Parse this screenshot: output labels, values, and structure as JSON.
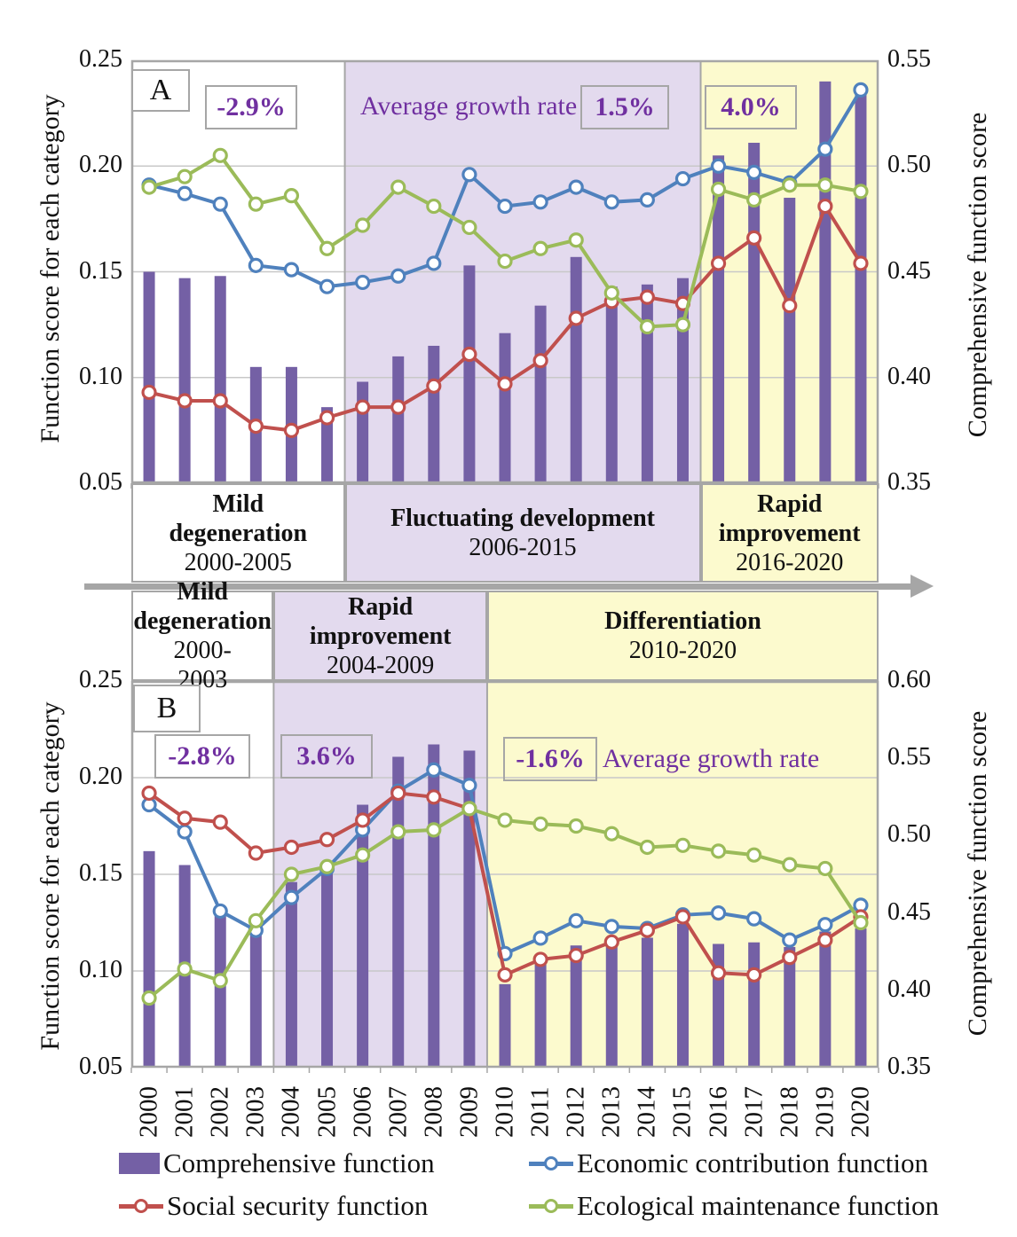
{
  "colors": {
    "bar": "#7460A5",
    "economic": "#4F81BD",
    "social": "#C0504D",
    "ecological": "#9BBB59",
    "band_white": "#FFFFFF",
    "band_purple": "#E3DAEE",
    "band_yellow": "#FCFACE",
    "rate_text": "#7030A0",
    "border_gray": "#A6A6A6",
    "gridline": "#C8C8C8"
  },
  "growth_label": "Average growth rate",
  "years": [
    2000,
    2001,
    2002,
    2003,
    2004,
    2005,
    2006,
    2007,
    2008,
    2009,
    2010,
    2011,
    2012,
    2013,
    2014,
    2015,
    2016,
    2017,
    2018,
    2019,
    2020
  ],
  "legend": [
    {
      "label": "Comprehensive function",
      "type": "bar",
      "color_key": "bar"
    },
    {
      "label": "Economic contribution function",
      "type": "line",
      "color_key": "economic"
    },
    {
      "label": "Social security function",
      "type": "line",
      "color_key": "social"
    },
    {
      "label": "Ecological maintenance function",
      "type": "line",
      "color_key": "ecological"
    }
  ],
  "chart_data": [
    {
      "panel_label": "A",
      "type": "bar+line",
      "categories": [
        2000,
        2001,
        2002,
        2003,
        2004,
        2005,
        2006,
        2007,
        2008,
        2009,
        2010,
        2011,
        2012,
        2013,
        2014,
        2015,
        2016,
        2017,
        2018,
        2019,
        2020
      ],
      "left_axis": {
        "title": "Function score for each category",
        "ticks": [
          "0.25",
          "0.20",
          "0.15",
          "0.10",
          "0.05"
        ]
      },
      "right_axis": {
        "title": "Comprehensive function score",
        "ticks": [
          "0.55",
          "0.50",
          "0.45",
          "0.40",
          "0.35"
        ]
      },
      "left_ylim": [
        0.05,
        0.25
      ],
      "right_ylim": [
        0.35,
        0.55
      ],
      "grid": true,
      "phases": [
        {
          "name": "Mild degeneration",
          "range": "2000-2005",
          "rate": "-2.9%",
          "band": "band_white"
        },
        {
          "name": "Fluctuating development",
          "range": "2006-2015",
          "rate": "1.5%",
          "band": "band_purple"
        },
        {
          "name": "Rapid improvement",
          "range": "2016-2020",
          "rate": "4.0%",
          "band": "band_yellow"
        }
      ],
      "bar_series": {
        "name": "Comprehensive function",
        "axis": "right",
        "values": [
          0.45,
          0.447,
          0.448,
          0.405,
          0.405,
          0.386,
          0.398,
          0.41,
          0.415,
          0.453,
          0.421,
          0.434,
          0.457,
          0.443,
          0.444,
          0.447,
          0.505,
          0.511,
          0.485,
          0.54,
          0.535
        ]
      },
      "line_series": [
        {
          "name": "Economic contribution function",
          "color_key": "economic",
          "axis": "left",
          "values": [
            0.191,
            0.187,
            0.182,
            0.153,
            0.151,
            0.143,
            0.145,
            0.148,
            0.154,
            0.196,
            0.181,
            0.183,
            0.19,
            0.183,
            0.184,
            0.194,
            0.2,
            0.197,
            0.192,
            0.208,
            0.236
          ]
        },
        {
          "name": "Social security function",
          "color_key": "social",
          "axis": "left",
          "values": [
            0.093,
            0.089,
            0.089,
            0.077,
            0.075,
            0.081,
            0.086,
            0.086,
            0.096,
            0.111,
            0.097,
            0.108,
            0.128,
            0.136,
            0.138,
            0.135,
            0.154,
            0.166,
            0.134,
            0.181,
            0.154
          ]
        },
        {
          "name": "Ecological maintenance function",
          "color_key": "ecological",
          "axis": "left",
          "values": [
            0.19,
            0.195,
            0.205,
            0.182,
            0.186,
            0.161,
            0.172,
            0.19,
            0.181,
            0.171,
            0.155,
            0.161,
            0.165,
            0.14,
            0.124,
            0.125,
            0.189,
            0.184,
            0.191,
            0.191,
            0.188
          ]
        }
      ]
    },
    {
      "panel_label": "B",
      "type": "bar+line",
      "categories": [
        2000,
        2001,
        2002,
        2003,
        2004,
        2005,
        2006,
        2007,
        2008,
        2009,
        2010,
        2011,
        2012,
        2013,
        2014,
        2015,
        2016,
        2017,
        2018,
        2019,
        2020
      ],
      "left_axis": {
        "title": "Function score for each category",
        "ticks": [
          "0.25",
          "0.20",
          "0.15",
          "0.10",
          "0.05"
        ]
      },
      "right_axis": {
        "title": "Comprehensive function score",
        "ticks": [
          "0.60",
          "0.55",
          "0.50",
          "0.45",
          "0.40",
          "0.35"
        ]
      },
      "left_ylim": [
        0.05,
        0.25
      ],
      "right_ylim": [
        0.35,
        0.6
      ],
      "grid": true,
      "phases": [
        {
          "name": "Mild degeneration",
          "range": "2000-2003",
          "rate": "-2.8%",
          "band": "band_white"
        },
        {
          "name": "Rapid improvement",
          "range": "2004-2009",
          "rate": "3.6%",
          "band": "band_purple"
        },
        {
          "name": "Differentiation",
          "range": "2010-2020",
          "rate": "-1.6%",
          "band": "band_yellow"
        }
      ],
      "bar_series": {
        "name": "Comprehensive function",
        "axis": "right",
        "values": [
          0.49,
          0.481,
          0.451,
          0.44,
          0.47,
          0.483,
          0.52,
          0.551,
          0.559,
          0.555,
          0.404,
          0.419,
          0.429,
          0.43,
          0.434,
          0.443,
          0.43,
          0.431,
          0.428,
          0.438,
          0.44
        ]
      },
      "line_series": [
        {
          "name": "Economic contribution function",
          "color_key": "economic",
          "axis": "left",
          "values": [
            0.186,
            0.172,
            0.131,
            0.121,
            0.138,
            0.153,
            0.173,
            0.193,
            0.204,
            0.196,
            0.109,
            0.117,
            0.126,
            0.123,
            0.122,
            0.129,
            0.13,
            0.127,
            0.116,
            0.124,
            0.134
          ]
        },
        {
          "name": "Social security function",
          "color_key": "social",
          "axis": "left",
          "values": [
            0.192,
            0.179,
            0.177,
            0.161,
            0.164,
            0.168,
            0.178,
            0.192,
            0.19,
            0.184,
            0.098,
            0.106,
            0.108,
            0.115,
            0.121,
            0.128,
            0.099,
            0.098,
            0.107,
            0.116,
            0.128
          ]
        },
        {
          "name": "Ecological maintenance function",
          "color_key": "ecological",
          "axis": "left",
          "values": [
            0.086,
            0.101,
            0.095,
            0.126,
            0.15,
            0.154,
            0.16,
            0.172,
            0.173,
            0.184,
            0.178,
            0.176,
            0.175,
            0.171,
            0.164,
            0.165,
            0.162,
            0.16,
            0.155,
            0.153,
            0.125
          ]
        }
      ]
    }
  ]
}
